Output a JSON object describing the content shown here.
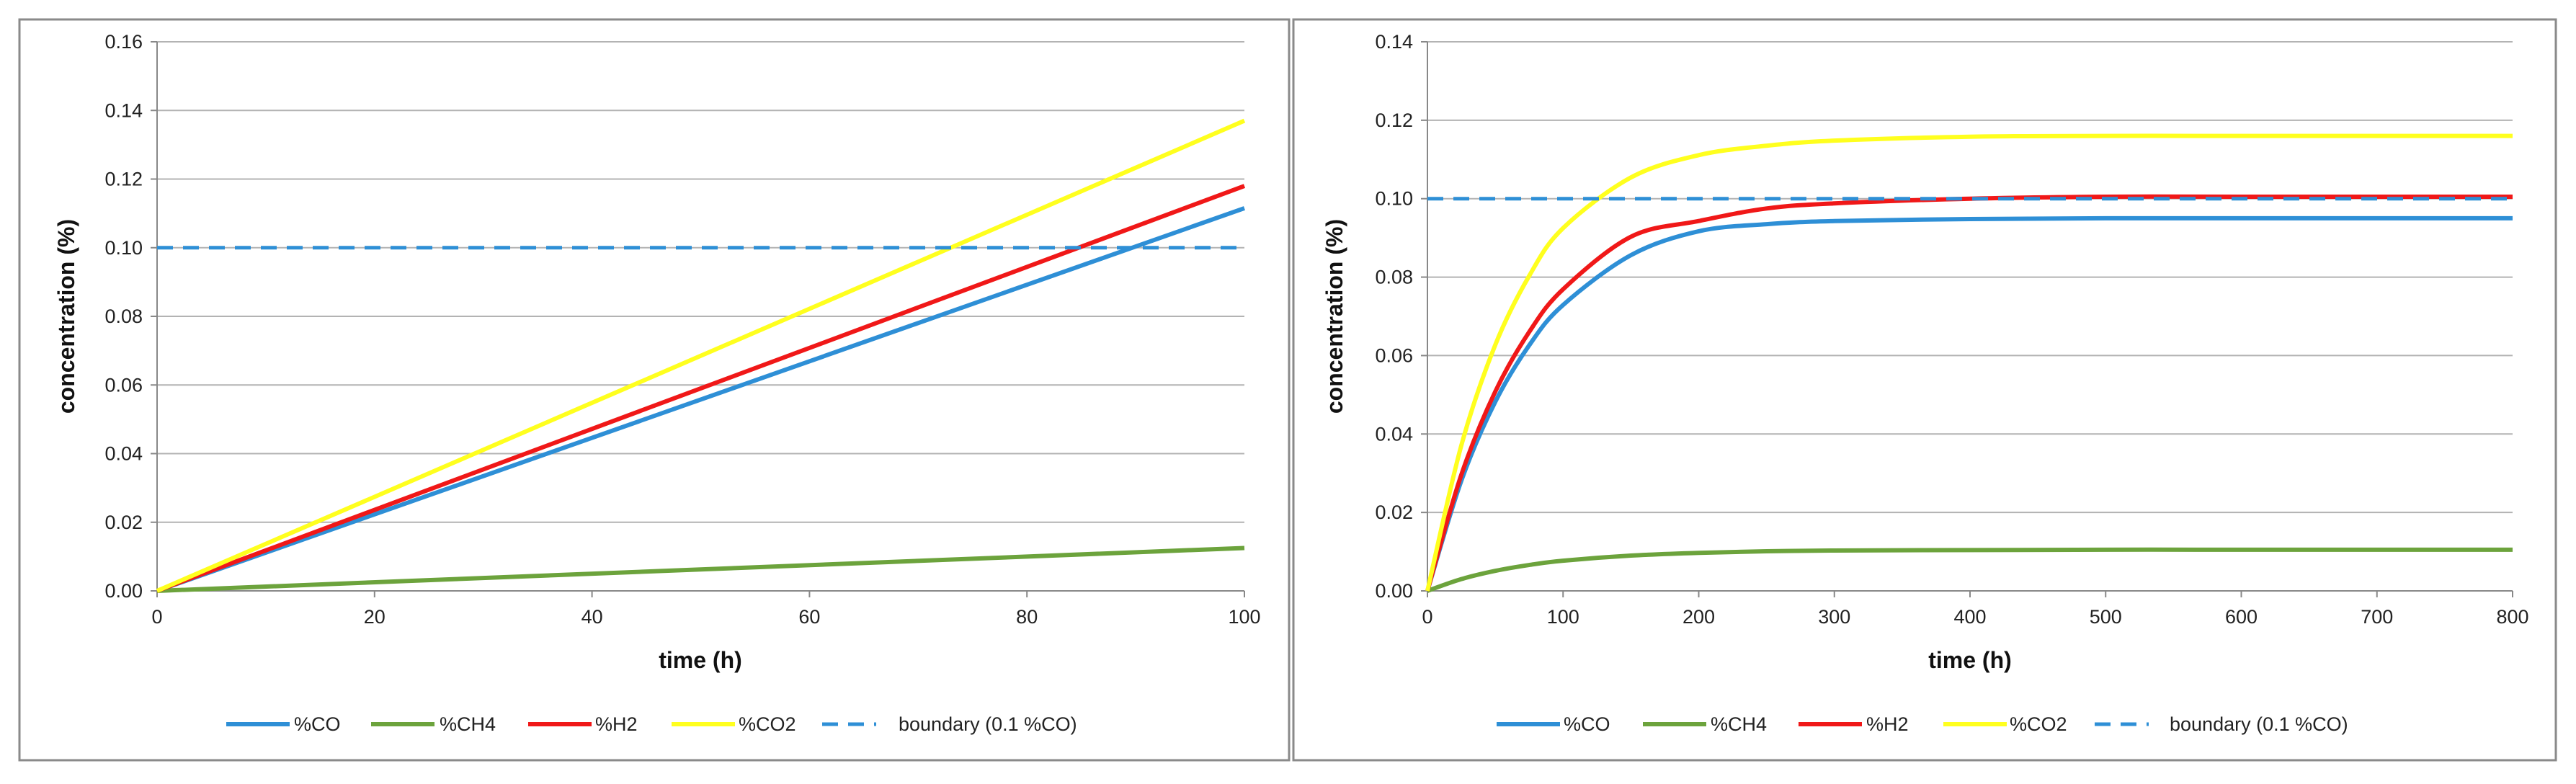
{
  "chart_data": [
    {
      "type": "line",
      "title": "",
      "xlabel": "time (h)",
      "ylabel": "concentration (%)",
      "xlim": [
        0,
        100
      ],
      "ylim": [
        0,
        0.16
      ],
      "xticks": [
        "0",
        "20",
        "40",
        "60",
        "80",
        "100"
      ],
      "yticks": [
        "0.00",
        "0.02",
        "0.04",
        "0.06",
        "0.08",
        "0.10",
        "0.12",
        "0.14",
        "0.16"
      ],
      "grid": true,
      "legend_position": "bottom",
      "series": [
        {
          "name": "%CO",
          "color": "#2e8fd6",
          "dash": false,
          "x": [
            0,
            100
          ],
          "y": [
            0,
            0.1115
          ]
        },
        {
          "name": "%CH4",
          "color": "#6ca33c",
          "dash": false,
          "x": [
            0,
            100
          ],
          "y": [
            0,
            0.0125
          ]
        },
        {
          "name": "%H2",
          "color": "#f01818",
          "dash": false,
          "x": [
            0,
            100
          ],
          "y": [
            0,
            0.118
          ]
        },
        {
          "name": "%CO2",
          "color": "#ffff1e",
          "dash": false,
          "x": [
            0,
            100
          ],
          "y": [
            0,
            0.137
          ]
        },
        {
          "name": "boundary (0.1 %CO)",
          "color": "#2e8fd6",
          "dash": true,
          "x": [
            0,
            100
          ],
          "y": [
            0.1,
            0.1
          ]
        }
      ]
    },
    {
      "type": "line",
      "title": "",
      "xlabel": "time (h)",
      "ylabel": "concentration (%)",
      "xlim": [
        0,
        800
      ],
      "ylim": [
        0,
        0.14
      ],
      "xticks": [
        "0",
        "100",
        "200",
        "300",
        "400",
        "500",
        "600",
        "700",
        "800"
      ],
      "yticks": [
        "0.00",
        "0.02",
        "0.04",
        "0.06",
        "0.08",
        "0.10",
        "0.12",
        "0.14"
      ],
      "grid": true,
      "legend_position": "bottom",
      "series": [
        {
          "name": "%CO",
          "color": "#2e8fd6",
          "dash": false,
          "x": [
            0,
            25,
            50,
            75,
            100,
            150,
            200,
            250,
            300,
            400,
            500,
            600,
            700,
            800
          ],
          "y": [
            0,
            0.0281,
            0.0482,
            0.0626,
            0.0729,
            0.0856,
            0.0917,
            0.0935,
            0.0943,
            0.0948,
            0.095,
            0.095,
            0.095,
            0.095
          ]
        },
        {
          "name": "%CH4",
          "color": "#6ca33c",
          "dash": false,
          "x": [
            0,
            25,
            50,
            75,
            100,
            150,
            200,
            250,
            300,
            400,
            500,
            600,
            700,
            800
          ],
          "y": [
            0,
            0.003,
            0.0051,
            0.0066,
            0.0077,
            0.009,
            0.0097,
            0.0101,
            0.0103,
            0.0104,
            0.0105,
            0.0105,
            0.0105,
            0.0105
          ]
        },
        {
          "name": "%H2",
          "color": "#f01818",
          "dash": false,
          "x": [
            0,
            25,
            50,
            75,
            100,
            150,
            200,
            250,
            300,
            400,
            500,
            600,
            700,
            800
          ],
          "y": [
            0,
            0.0296,
            0.0508,
            0.066,
            0.0769,
            0.0903,
            0.0943,
            0.0975,
            0.0988,
            0.1,
            0.1005,
            0.1005,
            0.1005,
            0.1005
          ]
        },
        {
          "name": "%CO2",
          "color": "#ffff1e",
          "dash": false,
          "x": [
            0,
            25,
            50,
            75,
            100,
            150,
            200,
            250,
            300,
            400,
            500,
            600,
            700,
            800
          ],
          "y": [
            0,
            0.0371,
            0.0627,
            0.0803,
            0.0925,
            0.1054,
            0.1111,
            0.1135,
            0.1148,
            0.1158,
            0.116,
            0.116,
            0.116,
            0.116
          ]
        },
        {
          "name": "boundary (0.1 %CO)",
          "color": "#2e8fd6",
          "dash": true,
          "x": [
            0,
            800
          ],
          "y": [
            0.1,
            0.1
          ]
        }
      ]
    }
  ]
}
